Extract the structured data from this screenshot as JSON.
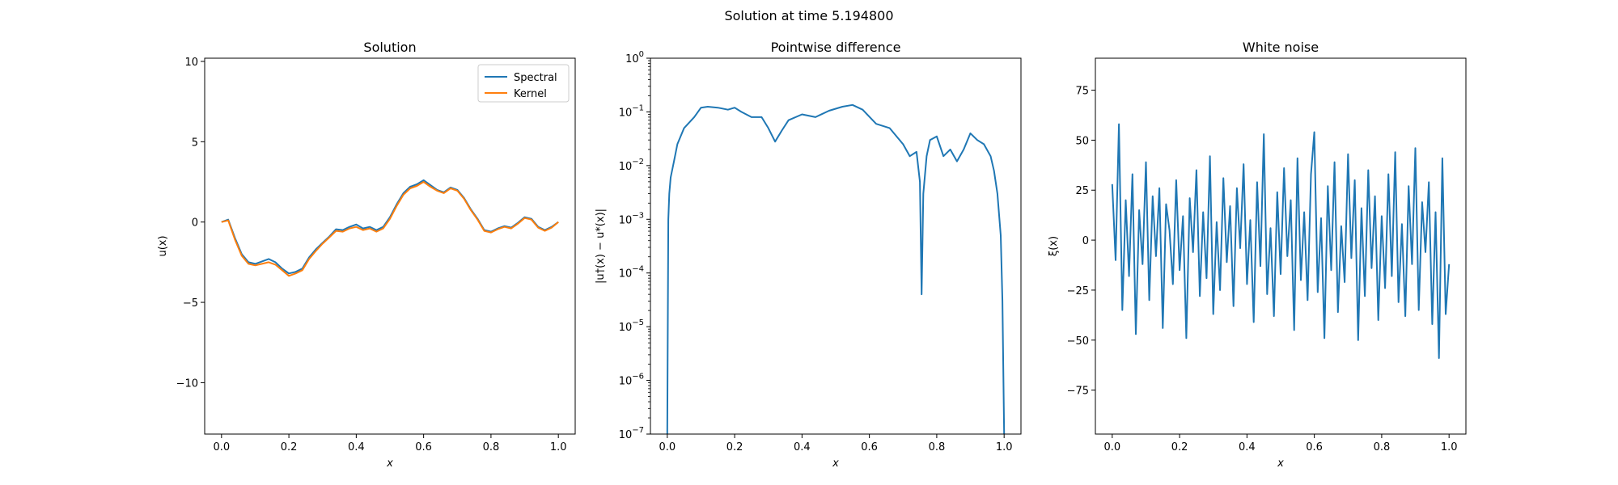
{
  "figure": {
    "suptitle": "Solution at time 5.194800"
  },
  "colors": {
    "spectral": "#1f77b4",
    "kernel": "#ff7f0e"
  },
  "chart_data": [
    {
      "id": "solution",
      "type": "line",
      "title": "Solution",
      "xlabel": "x",
      "ylabel": "u(x)",
      "xlim": [
        -0.05,
        1.05
      ],
      "ylim": [
        -13.2,
        10.2
      ],
      "xticks": [
        0.0,
        0.2,
        0.4,
        0.6,
        0.8,
        1.0
      ],
      "xtick_labels": [
        "0.0",
        "0.2",
        "0.4",
        "0.6",
        "0.8",
        "1.0"
      ],
      "yticks": [
        -10,
        -5,
        0,
        5,
        10
      ],
      "ytick_labels": [
        "−10",
        "−5",
        "0",
        "5",
        "10"
      ],
      "legend": "top-right",
      "series": [
        {
          "name": "Spectral",
          "x": [
            0.0,
            0.02,
            0.04,
            0.06,
            0.08,
            0.1,
            0.12,
            0.14,
            0.16,
            0.18,
            0.2,
            0.22,
            0.24,
            0.26,
            0.28,
            0.3,
            0.32,
            0.34,
            0.36,
            0.38,
            0.4,
            0.42,
            0.44,
            0.46,
            0.48,
            0.5,
            0.52,
            0.54,
            0.56,
            0.58,
            0.6,
            0.62,
            0.64,
            0.66,
            0.68,
            0.7,
            0.72,
            0.74,
            0.76,
            0.78,
            0.8,
            0.82,
            0.84,
            0.86,
            0.88,
            0.9,
            0.92,
            0.94,
            0.96,
            0.98,
            1.0
          ],
          "y": [
            0.0,
            0.15,
            -1.0,
            -2.0,
            -2.5,
            -2.6,
            -2.45,
            -2.3,
            -2.5,
            -2.9,
            -3.2,
            -3.1,
            -2.9,
            -2.2,
            -1.7,
            -1.3,
            -0.9,
            -0.45,
            -0.5,
            -0.3,
            -0.15,
            -0.4,
            -0.3,
            -0.5,
            -0.3,
            0.3,
            1.1,
            1.8,
            2.2,
            2.35,
            2.6,
            2.3,
            2.0,
            1.85,
            2.15,
            2.0,
            1.5,
            0.8,
            0.2,
            -0.5,
            -0.6,
            -0.4,
            -0.25,
            -0.35,
            -0.05,
            0.3,
            0.2,
            -0.3,
            -0.5,
            -0.3,
            0.0
          ]
        },
        {
          "name": "Kernel",
          "x": [
            0.0,
            0.02,
            0.04,
            0.06,
            0.08,
            0.1,
            0.12,
            0.14,
            0.16,
            0.18,
            0.2,
            0.22,
            0.24,
            0.26,
            0.28,
            0.3,
            0.32,
            0.34,
            0.36,
            0.38,
            0.4,
            0.42,
            0.44,
            0.46,
            0.48,
            0.5,
            0.52,
            0.54,
            0.56,
            0.58,
            0.6,
            0.62,
            0.64,
            0.66,
            0.68,
            0.7,
            0.72,
            0.74,
            0.76,
            0.78,
            0.8,
            0.82,
            0.84,
            0.86,
            0.88,
            0.9,
            0.92,
            0.94,
            0.96,
            0.98,
            1.0
          ],
          "y": [
            0.0,
            0.1,
            -1.1,
            -2.1,
            -2.6,
            -2.7,
            -2.6,
            -2.5,
            -2.65,
            -3.0,
            -3.35,
            -3.2,
            -3.0,
            -2.3,
            -1.8,
            -1.35,
            -0.95,
            -0.55,
            -0.6,
            -0.4,
            -0.3,
            -0.5,
            -0.4,
            -0.6,
            -0.4,
            0.2,
            1.0,
            1.7,
            2.1,
            2.25,
            2.5,
            2.2,
            1.95,
            1.8,
            2.1,
            1.95,
            1.45,
            0.75,
            0.15,
            -0.55,
            -0.65,
            -0.45,
            -0.3,
            -0.4,
            -0.1,
            0.25,
            0.15,
            -0.35,
            -0.55,
            -0.35,
            0.0
          ]
        }
      ]
    },
    {
      "id": "difference",
      "type": "line",
      "title": "Pointwise difference",
      "xlabel": "x",
      "ylabel": "|u†(x) − u*(x)|",
      "yscale": "log",
      "xlim": [
        -0.05,
        1.05
      ],
      "ylim": [
        1e-07,
        1
      ],
      "xticks": [
        0.0,
        0.2,
        0.4,
        0.6,
        0.8,
        1.0
      ],
      "xtick_labels": [
        "0.0",
        "0.2",
        "0.4",
        "0.6",
        "0.8",
        "1.0"
      ],
      "yticks_exp": [
        -7,
        -6,
        -5,
        -4,
        -3,
        -2,
        -1,
        0
      ],
      "series": [
        {
          "name": "",
          "x": [
            0.0,
            0.003,
            0.006,
            0.01,
            0.02,
            0.03,
            0.05,
            0.08,
            0.1,
            0.12,
            0.15,
            0.18,
            0.2,
            0.22,
            0.25,
            0.28,
            0.3,
            0.32,
            0.34,
            0.36,
            0.4,
            0.44,
            0.48,
            0.52,
            0.55,
            0.58,
            0.62,
            0.66,
            0.7,
            0.72,
            0.74,
            0.75,
            0.755,
            0.76,
            0.77,
            0.78,
            0.8,
            0.82,
            0.84,
            0.86,
            0.88,
            0.9,
            0.92,
            0.94,
            0.96,
            0.97,
            0.98,
            0.99,
            0.995,
            1.0
          ],
          "y": [
            1e-07,
            0.001,
            0.003,
            0.006,
            0.012,
            0.025,
            0.05,
            0.08,
            0.12,
            0.125,
            0.12,
            0.11,
            0.12,
            0.1,
            0.08,
            0.08,
            0.05,
            0.028,
            0.045,
            0.07,
            0.09,
            0.08,
            0.105,
            0.125,
            0.135,
            0.11,
            0.06,
            0.05,
            0.025,
            0.015,
            0.018,
            0.005,
            4e-05,
            0.003,
            0.015,
            0.03,
            0.035,
            0.015,
            0.02,
            0.012,
            0.02,
            0.04,
            0.03,
            0.025,
            0.015,
            0.008,
            0.003,
            0.0005,
            3e-05,
            1e-07
          ]
        }
      ]
    },
    {
      "id": "noise",
      "type": "line",
      "title": "White noise",
      "xlabel": "x",
      "ylabel": "ξ(x)",
      "xlim": [
        -0.05,
        1.05
      ],
      "ylim": [
        -97,
        91
      ],
      "xticks": [
        0.0,
        0.2,
        0.4,
        0.6,
        0.8,
        1.0
      ],
      "xtick_labels": [
        "0.0",
        "0.2",
        "0.4",
        "0.6",
        "0.8",
        "1.0"
      ],
      "yticks": [
        -75,
        -50,
        -25,
        0,
        25,
        50,
        75
      ],
      "ytick_labels": [
        "−75",
        "−50",
        "−25",
        "0",
        "25",
        "50",
        "75"
      ],
      "series": [
        {
          "name": "",
          "x": [
            0.0,
            0.01,
            0.02,
            0.03,
            0.04,
            0.05,
            0.06,
            0.07,
            0.08,
            0.09,
            0.1,
            0.11,
            0.12,
            0.13,
            0.14,
            0.15,
            0.16,
            0.17,
            0.18,
            0.19,
            0.2,
            0.21,
            0.22,
            0.23,
            0.24,
            0.25,
            0.26,
            0.27,
            0.28,
            0.29,
            0.3,
            0.31,
            0.32,
            0.33,
            0.34,
            0.35,
            0.36,
            0.37,
            0.38,
            0.39,
            0.4,
            0.41,
            0.42,
            0.43,
            0.44,
            0.45,
            0.46,
            0.47,
            0.48,
            0.49,
            0.5,
            0.51,
            0.52,
            0.53,
            0.54,
            0.55,
            0.56,
            0.57,
            0.58,
            0.59,
            0.6,
            0.61,
            0.62,
            0.63,
            0.64,
            0.65,
            0.66,
            0.67,
            0.68,
            0.69,
            0.7,
            0.71,
            0.72,
            0.73,
            0.74,
            0.75,
            0.76,
            0.77,
            0.78,
            0.79,
            0.8,
            0.81,
            0.82,
            0.83,
            0.84,
            0.85,
            0.86,
            0.87,
            0.88,
            0.89,
            0.9,
            0.91,
            0.92,
            0.93,
            0.94,
            0.95,
            0.96,
            0.97,
            0.98,
            0.99,
            1.0
          ],
          "y": [
            28,
            -10,
            58,
            -35,
            20,
            -18,
            33,
            -47,
            15,
            -12,
            39,
            -30,
            22,
            -8,
            26,
            -44,
            18,
            5,
            -22,
            30,
            -15,
            12,
            -49,
            21,
            -6,
            35,
            -28,
            14,
            -19,
            42,
            -37,
            9,
            -25,
            31,
            -11,
            17,
            -33,
            26,
            -4,
            38,
            -22,
            10,
            -41,
            29,
            -13,
            53,
            -27,
            6,
            -38,
            24,
            -17,
            36,
            -8,
            20,
            -45,
            41,
            -20,
            14,
            -30,
            33,
            54,
            -26,
            11,
            -49,
            27,
            -15,
            39,
            -36,
            7,
            -21,
            43,
            -9,
            30,
            -50,
            16,
            -28,
            35,
            -14,
            22,
            -40,
            12,
            -24,
            33,
            -18,
            44,
            -31,
            8,
            -38,
            27,
            -12,
            46,
            -35,
            19,
            -6,
            29,
            -42,
            14,
            -59,
            41,
            -37,
            -12
          ]
        }
      ]
    }
  ]
}
